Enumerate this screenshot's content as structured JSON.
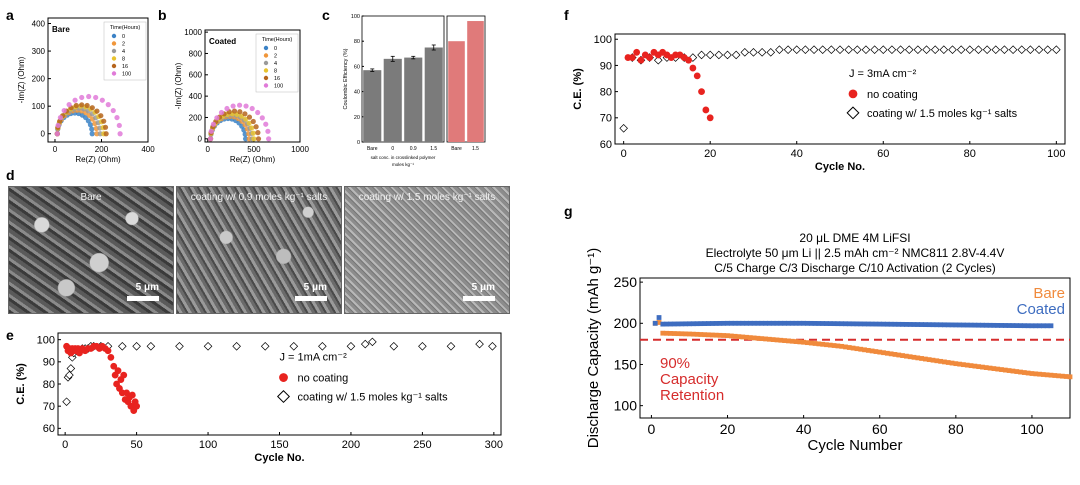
{
  "panel_letters": {
    "a": "a",
    "b": "b",
    "c": "c",
    "d": "d",
    "e": "e",
    "f": "f",
    "g": "g"
  },
  "colors": {
    "red": "#e8231f",
    "orange": "#f08a3c",
    "blue": "#3e6dc0",
    "bar_grey": "#7b7b7b",
    "bar_pink": "#e07a7a",
    "dash_red": "#d62c2c"
  },
  "sem": {
    "labels": [
      "Bare",
      "coating w/ 0.9 moles kg⁻¹ salts",
      "coating w/ 1.5 moles kg⁻¹ salts"
    ],
    "scale_label": "5 μm"
  },
  "chart_data": [
    {
      "id": "a",
      "type": "scatter",
      "tag": "Bare",
      "xlabel": "Re(Z) (Ohm)",
      "ylabel": "-Im(Z) (Ohm)",
      "xlim": [
        -30,
        400
      ],
      "ylim": [
        -30,
        420
      ],
      "xticks": [
        0,
        200,
        400
      ],
      "yticks": [
        0,
        100,
        200,
        300,
        400
      ],
      "legend_title": "Time(Hours)",
      "series": [
        {
          "name": "0",
          "color": "#3b82c6",
          "x0": 10,
          "diameter": 150
        },
        {
          "name": "2",
          "color": "#f0963a",
          "x0": 10,
          "diameter": 170
        },
        {
          "name": "4",
          "color": "#9a9a9a",
          "x0": 10,
          "diameter": 185
        },
        {
          "name": "8",
          "color": "#e8c32e",
          "x0": 10,
          "diameter": 200
        },
        {
          "name": "16",
          "color": "#b5651d",
          "x0": 10,
          "diameter": 210
        },
        {
          "name": "100",
          "color": "#e07ad8",
          "x0": 10,
          "diameter": 270
        }
      ]
    },
    {
      "id": "b",
      "type": "scatter",
      "tag": "Coated",
      "xlabel": "Re(Z) (Ohm)",
      "ylabel": "-Im(Z) (Ohm)",
      "xlim": [
        -30,
        1000
      ],
      "ylim": [
        -30,
        1020
      ],
      "xticks": [
        0,
        500,
        1000
      ],
      "yticks": [
        0,
        200,
        400,
        600,
        800,
        1000
      ],
      "legend_title": "Time(Hours)",
      "series": [
        {
          "name": "0",
          "color": "#3b82c6",
          "x0": 30,
          "diameter": 380
        },
        {
          "name": "2",
          "color": "#f0963a",
          "x0": 30,
          "diameter": 420
        },
        {
          "name": "4",
          "color": "#9a9a9a",
          "x0": 30,
          "diameter": 450
        },
        {
          "name": "8",
          "color": "#e8c32e",
          "x0": 30,
          "diameter": 470
        },
        {
          "name": "16",
          "color": "#b5651d",
          "x0": 30,
          "diameter": 520
        },
        {
          "name": "100",
          "color": "#e07ad8",
          "x0": 30,
          "diameter": 630
        }
      ]
    },
    {
      "id": "c",
      "type": "bar",
      "ylabel": "Coulombic Efficiency (%)",
      "xlabel": "salt conc. in crosslinked polymer",
      "xlabel_unit": "moles kg⁻¹",
      "ylim": [
        0,
        100
      ],
      "yticks": [
        0,
        20,
        40,
        60,
        80,
        100
      ],
      "left": {
        "categories": [
          "Bare",
          "0",
          "0.9",
          "1.5"
        ],
        "values": [
          57,
          66,
          67,
          75
        ],
        "errors": [
          1,
          2,
          1,
          2
        ]
      },
      "right": {
        "categories": [
          "Bare",
          "1.5"
        ],
        "values": [
          80,
          96
        ]
      }
    },
    {
      "id": "e",
      "type": "scatter",
      "xlabel": "Cycle No.",
      "ylabel": "C.E. (%)",
      "xlim": [
        -5,
        305
      ],
      "ylim": [
        57,
        103
      ],
      "xticks": [
        0,
        50,
        100,
        150,
        200,
        250,
        300
      ],
      "yticks": [
        60,
        70,
        80,
        90,
        100
      ],
      "current_label": "J = 1mA cm⁻²",
      "series": [
        {
          "name": "no coating",
          "marker": "dot",
          "x": [
            1,
            2,
            3,
            4,
            5,
            6,
            7,
            8,
            9,
            10,
            12,
            14,
            16,
            18,
            20,
            22,
            24,
            26,
            28,
            30,
            32,
            34,
            35,
            36,
            37,
            38,
            39,
            40,
            41,
            42,
            43,
            44,
            45,
            46,
            47,
            48,
            49,
            50
          ],
          "y": [
            97,
            95,
            96,
            94,
            96,
            95,
            96,
            95,
            96,
            94,
            96,
            95,
            96,
            96,
            97,
            97,
            96,
            97,
            96,
            95,
            92,
            88,
            84,
            80,
            86,
            78,
            82,
            76,
            84,
            73,
            76,
            72,
            74,
            70,
            75,
            68,
            72,
            70
          ]
        },
        {
          "name": "coating w/ 1.5 moles kg⁻¹ salts",
          "marker": "diamond",
          "x": [
            1,
            2,
            3,
            4,
            5,
            6,
            8,
            10,
            12,
            14,
            16,
            18,
            20,
            25,
            30,
            40,
            50,
            60,
            80,
            100,
            120,
            140,
            160,
            180,
            200,
            210,
            215,
            230,
            250,
            270,
            290,
            299
          ],
          "y": [
            72,
            83,
            84,
            87,
            92,
            94,
            95,
            95,
            96,
            96,
            96,
            97,
            97,
            97,
            97,
            97,
            97,
            97,
            97,
            97,
            97,
            97,
            97,
            97,
            97,
            98,
            99,
            97,
            97,
            97,
            98,
            97
          ]
        }
      ]
    },
    {
      "id": "f",
      "type": "scatter",
      "xlabel": "Cycle No.",
      "ylabel": "C.E. (%)",
      "xlim": [
        -2,
        102
      ],
      "ylim": [
        60,
        102
      ],
      "xticks": [
        0,
        20,
        40,
        60,
        80,
        100
      ],
      "yticks": [
        60,
        70,
        80,
        90,
        100
      ],
      "current_label": "J = 3mA cm⁻²",
      "series": [
        {
          "name": "no coating",
          "marker": "dot",
          "x": [
            1,
            2,
            3,
            4,
            5,
            6,
            7,
            8,
            9,
            10,
            11,
            12,
            13,
            14,
            15,
            16,
            17,
            18,
            19,
            20
          ],
          "y": [
            93,
            93,
            95,
            92,
            94,
            93,
            95,
            94,
            95,
            94,
            93,
            94,
            94,
            93,
            92,
            89,
            86,
            80,
            73,
            70
          ]
        },
        {
          "name": "coating w/ 1.5 moles kg⁻¹ salts",
          "marker": "diamond",
          "x": [
            0,
            2,
            4,
            6,
            8,
            10,
            12,
            14,
            16,
            18,
            20,
            22,
            24,
            26,
            28,
            30,
            32,
            34,
            36,
            38,
            40,
            42,
            44,
            46,
            48,
            50,
            52,
            54,
            56,
            58,
            60,
            62,
            64,
            66,
            68,
            70,
            72,
            74,
            76,
            78,
            80,
            82,
            84,
            86,
            88,
            90,
            92,
            94,
            96,
            98,
            100
          ],
          "y": [
            66,
            93,
            92,
            93,
            92,
            93,
            93,
            93,
            93,
            94,
            94,
            94,
            94,
            94,
            95,
            95,
            95,
            95,
            96,
            96,
            96,
            96,
            96,
            96,
            96,
            96,
            96,
            96,
            96,
            96,
            96,
            96,
            96,
            96,
            96,
            96,
            96,
            96,
            96,
            96,
            96,
            96,
            96,
            96,
            96,
            96,
            96,
            96,
            96,
            96,
            96
          ]
        }
      ]
    },
    {
      "id": "g",
      "type": "scatter",
      "title_lines": [
        "20 μL DME 4M LiFSI",
        "Electrolyte 50 μm Li || 2.5 mAh cm⁻² NMC811 2.8V-4.4V",
        "C/5 Charge C/3 Discharge C/10 Activation (2 Cycles)"
      ],
      "xlabel": "Cycle Number",
      "ylabel": "Discharge Capacity (mAh g⁻¹)",
      "xlim": [
        -3,
        110
      ],
      "ylim": [
        85,
        255
      ],
      "xticks": [
        0,
        20,
        40,
        60,
        80,
        100
      ],
      "yticks": [
        100,
        150,
        200,
        250
      ],
      "threshold": 180,
      "threshold_lines": [
        "90%",
        "Capacity",
        "Retention"
      ],
      "series": [
        {
          "name": "Bare",
          "color": "#f08a3c",
          "start": 200,
          "points": [
            [
              1,
              200
            ],
            [
              2,
              201
            ],
            [
              3,
              188
            ],
            [
              10,
              187
            ],
            [
              20,
              185
            ],
            [
              25,
              183
            ],
            [
              30,
              181
            ],
            [
              40,
              177
            ],
            [
              50,
              172
            ],
            [
              60,
              165
            ],
            [
              70,
              158
            ],
            [
              80,
              151
            ],
            [
              90,
              145
            ],
            [
              100,
              139
            ],
            [
              110,
              135
            ]
          ]
        },
        {
          "name": "Coated",
          "color": "#3e6dc0",
          "points": [
            [
              1,
              200
            ],
            [
              2,
              207
            ],
            [
              3,
              199
            ],
            [
              20,
              200
            ],
            [
              40,
              200
            ],
            [
              60,
              199
            ],
            [
              80,
              198
            ],
            [
              100,
              197
            ],
            [
              105,
              197
            ]
          ]
        }
      ]
    }
  ]
}
